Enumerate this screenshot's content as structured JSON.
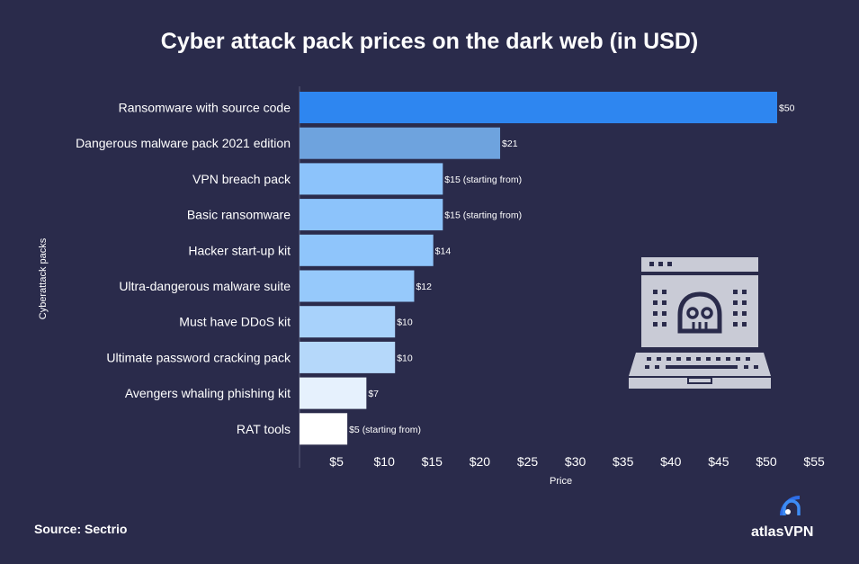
{
  "chart_data": {
    "type": "bar",
    "orientation": "horizontal",
    "title": "Cyber attack pack prices on the dark web (in USD)",
    "xlabel": "Price",
    "ylabel": "Cyberattack packs",
    "xlim": [
      0,
      55
    ],
    "xticks": [
      5,
      10,
      15,
      20,
      25,
      30,
      35,
      40,
      45,
      50,
      55
    ],
    "xtick_labels": [
      "$5",
      "$10",
      "$15",
      "$20",
      "$25",
      "$30",
      "$35",
      "$40",
      "$45",
      "$50",
      "$55"
    ],
    "categories": [
      "Ransomware with source code",
      "Dangerous malware pack 2021 edition",
      "VPN breach pack",
      "Basic ransomware",
      "Hacker start-up kit",
      "Ultra-dangerous malware suite",
      "Must have DDoS kit",
      "Ultimate password cracking pack",
      "Avengers whaling phishing kit",
      "RAT tools"
    ],
    "values": [
      50,
      21,
      15,
      15,
      14,
      12,
      10,
      10,
      7,
      5
    ],
    "data_labels": [
      "$50",
      "$21",
      "$15 (starting from)",
      "$15 (starting from)",
      "$14",
      "$12",
      "$10",
      "$10",
      "$7",
      "$5 (starting from)"
    ],
    "colors": [
      "#2e86f0",
      "#6ea3de",
      "#8cc3fb",
      "#8cc3fb",
      "#8fc5fb",
      "#96c9fb",
      "#a8d2fb",
      "#b5d8fa",
      "#e6f1fd",
      "#ffffff"
    ],
    "grid": false
  },
  "footer": {
    "source": "Source: Sectrio",
    "brand": "atlasVPN"
  },
  "icons": {
    "illustration": "laptop-skull-icon",
    "logo": "atlasvpn-logo-icon"
  }
}
